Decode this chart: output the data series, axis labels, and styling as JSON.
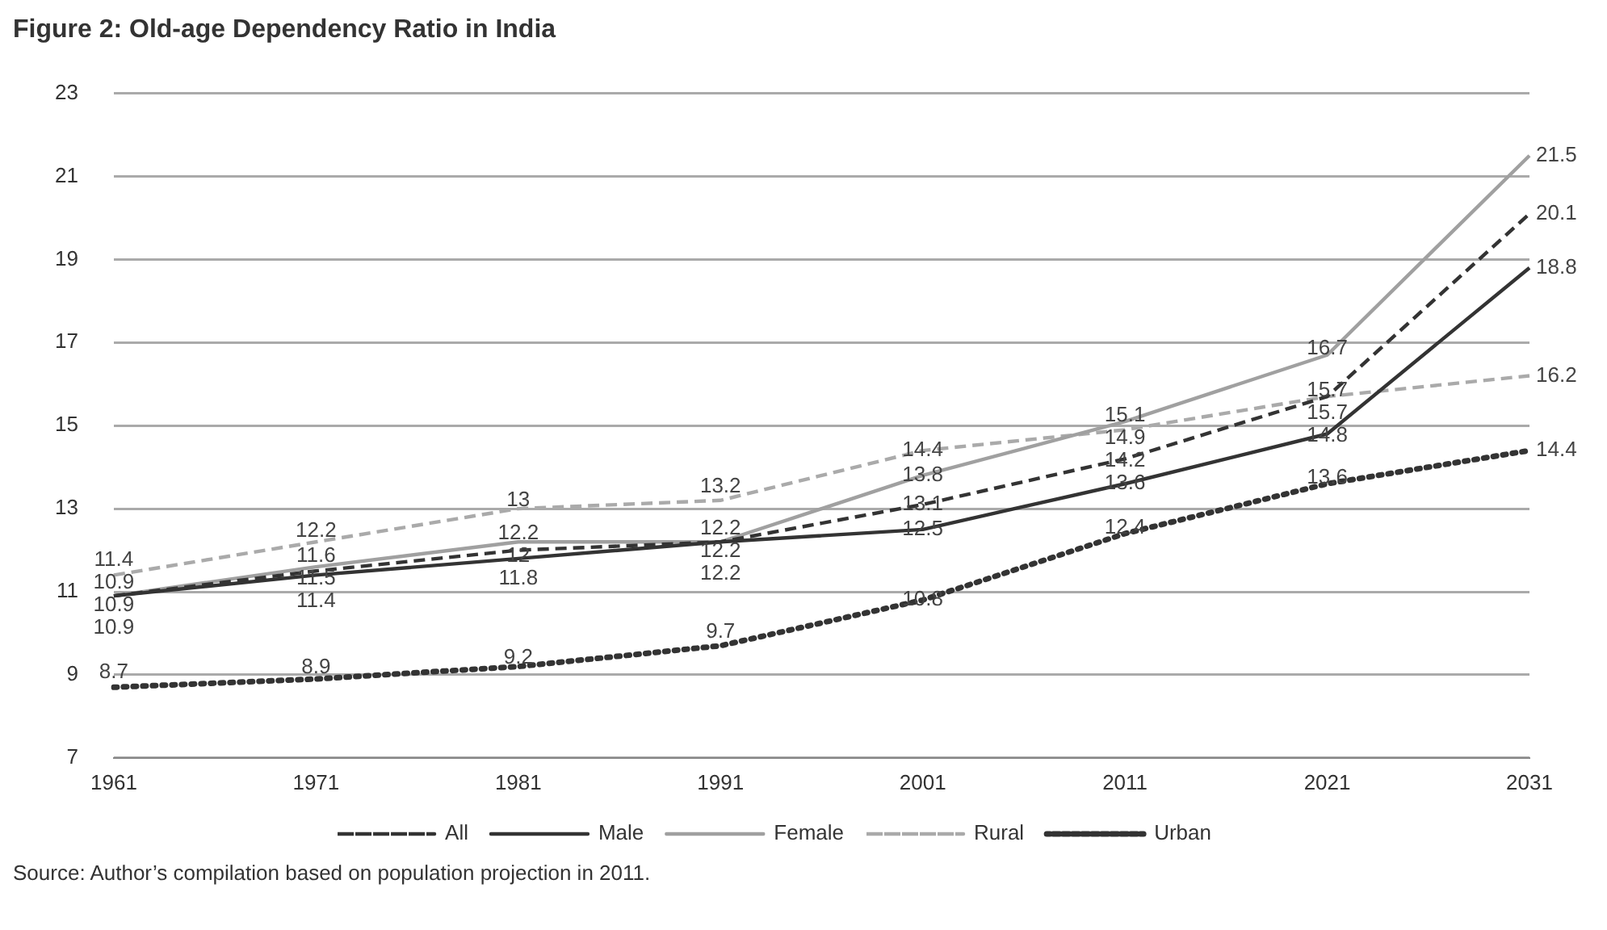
{
  "chart_data": {
    "type": "line",
    "title": "Figure 2: Old-age Dependency Ratio in India",
    "categories": [
      "1961",
      "1971",
      "1981",
      "1991",
      "2001",
      "2011",
      "2021",
      "2031"
    ],
    "series": [
      {
        "name": "All",
        "color": "#333333",
        "line_style": "dashed",
        "values": [
          10.9,
          11.5,
          12,
          12.2,
          13.1,
          14.2,
          15.7,
          20.1
        ]
      },
      {
        "name": "Male",
        "color": "#333333",
        "line_style": "solid",
        "values": [
          10.9,
          11.4,
          11.8,
          12.2,
          12.5,
          13.6,
          14.8,
          18.8
        ]
      },
      {
        "name": "Female",
        "color": "#a0a0a0",
        "line_style": "solid",
        "values": [
          10.9,
          11.6,
          12.2,
          12.2,
          13.8,
          15.1,
          16.7,
          21.5
        ]
      },
      {
        "name": "Rural",
        "color": "#aaaaaa",
        "line_style": "dashed",
        "values": [
          11.4,
          12.2,
          13,
          13.2,
          14.4,
          14.9,
          15.7,
          16.2
        ]
      },
      {
        "name": "Urban",
        "color": "#333333",
        "line_style": "dotted",
        "values": [
          8.7,
          8.9,
          9.2,
          9.7,
          10.8,
          12.4,
          13.6,
          14.4
        ]
      }
    ],
    "ylim": [
      7,
      23
    ],
    "yticks": [
      7,
      9,
      11,
      13,
      15,
      17,
      19,
      21,
      23
    ],
    "grid": "y",
    "legend": "bottom",
    "marker": "none",
    "data_labels": true,
    "annotations": [
      "Source: Author’s compilation based on population projection in 2011."
    ]
  }
}
